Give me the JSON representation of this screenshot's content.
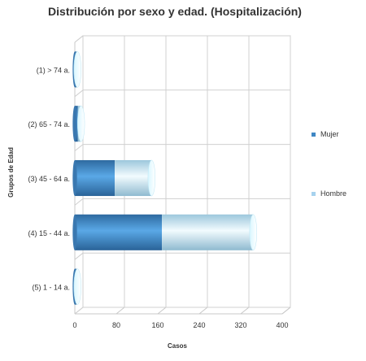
{
  "chart_data": {
    "type": "bar",
    "orientation": "horizontal",
    "stacked": true,
    "title": "Distribución por sexo y edad. (Hospitalización)",
    "xlabel": "Casos",
    "ylabel": "Grupos de Edad",
    "xlim": [
      0,
      400
    ],
    "xticks": [
      "0",
      "80",
      "160",
      "240",
      "320",
      "400"
    ],
    "categories": [
      "(1) > 74 a.",
      "(2) 65 - 74 a.",
      "(3) 45 - 64 a.",
      "(4) 15 - 44 a.",
      "(5) 1 - 14 a."
    ],
    "series": [
      {
        "name": "Mujer",
        "values": [
          3,
          6,
          77,
          168,
          3
        ],
        "color": "#3f87c4"
      },
      {
        "name": "Hombre",
        "values": [
          2,
          6,
          71,
          176,
          2
        ],
        "color": "#a7d2ee"
      }
    ],
    "grid": true,
    "legend": "right"
  }
}
